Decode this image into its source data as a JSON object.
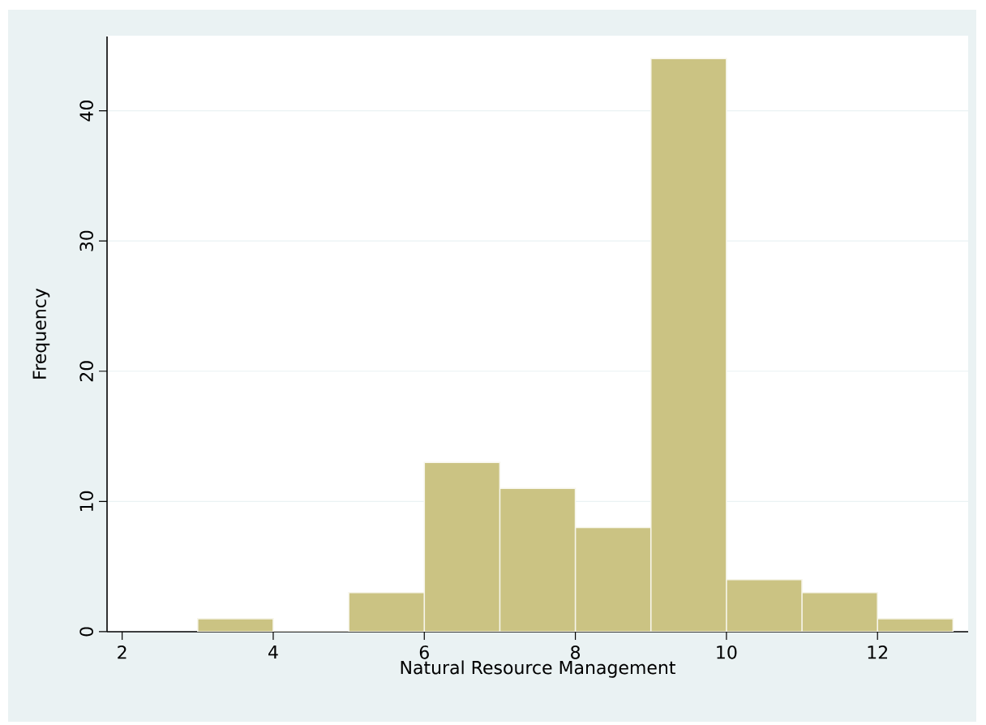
{
  "chart_data": {
    "type": "histogram",
    "xlabel": "Natural Resource Management",
    "ylabel": "Frequency",
    "bins": [
      3,
      4,
      5,
      6,
      7,
      8,
      9,
      10,
      11,
      12,
      13
    ],
    "values": [
      1,
      0,
      3,
      13,
      11,
      8,
      44,
      4,
      3,
      1
    ],
    "color": "#cbc383",
    "xlim": [
      1.8,
      13.2
    ],
    "ylim": [
      0,
      45.7
    ],
    "xticks": [
      2,
      4,
      6,
      8,
      10,
      12
    ],
    "yticks": [
      0,
      10,
      20,
      30,
      40
    ],
    "grid": "y"
  }
}
